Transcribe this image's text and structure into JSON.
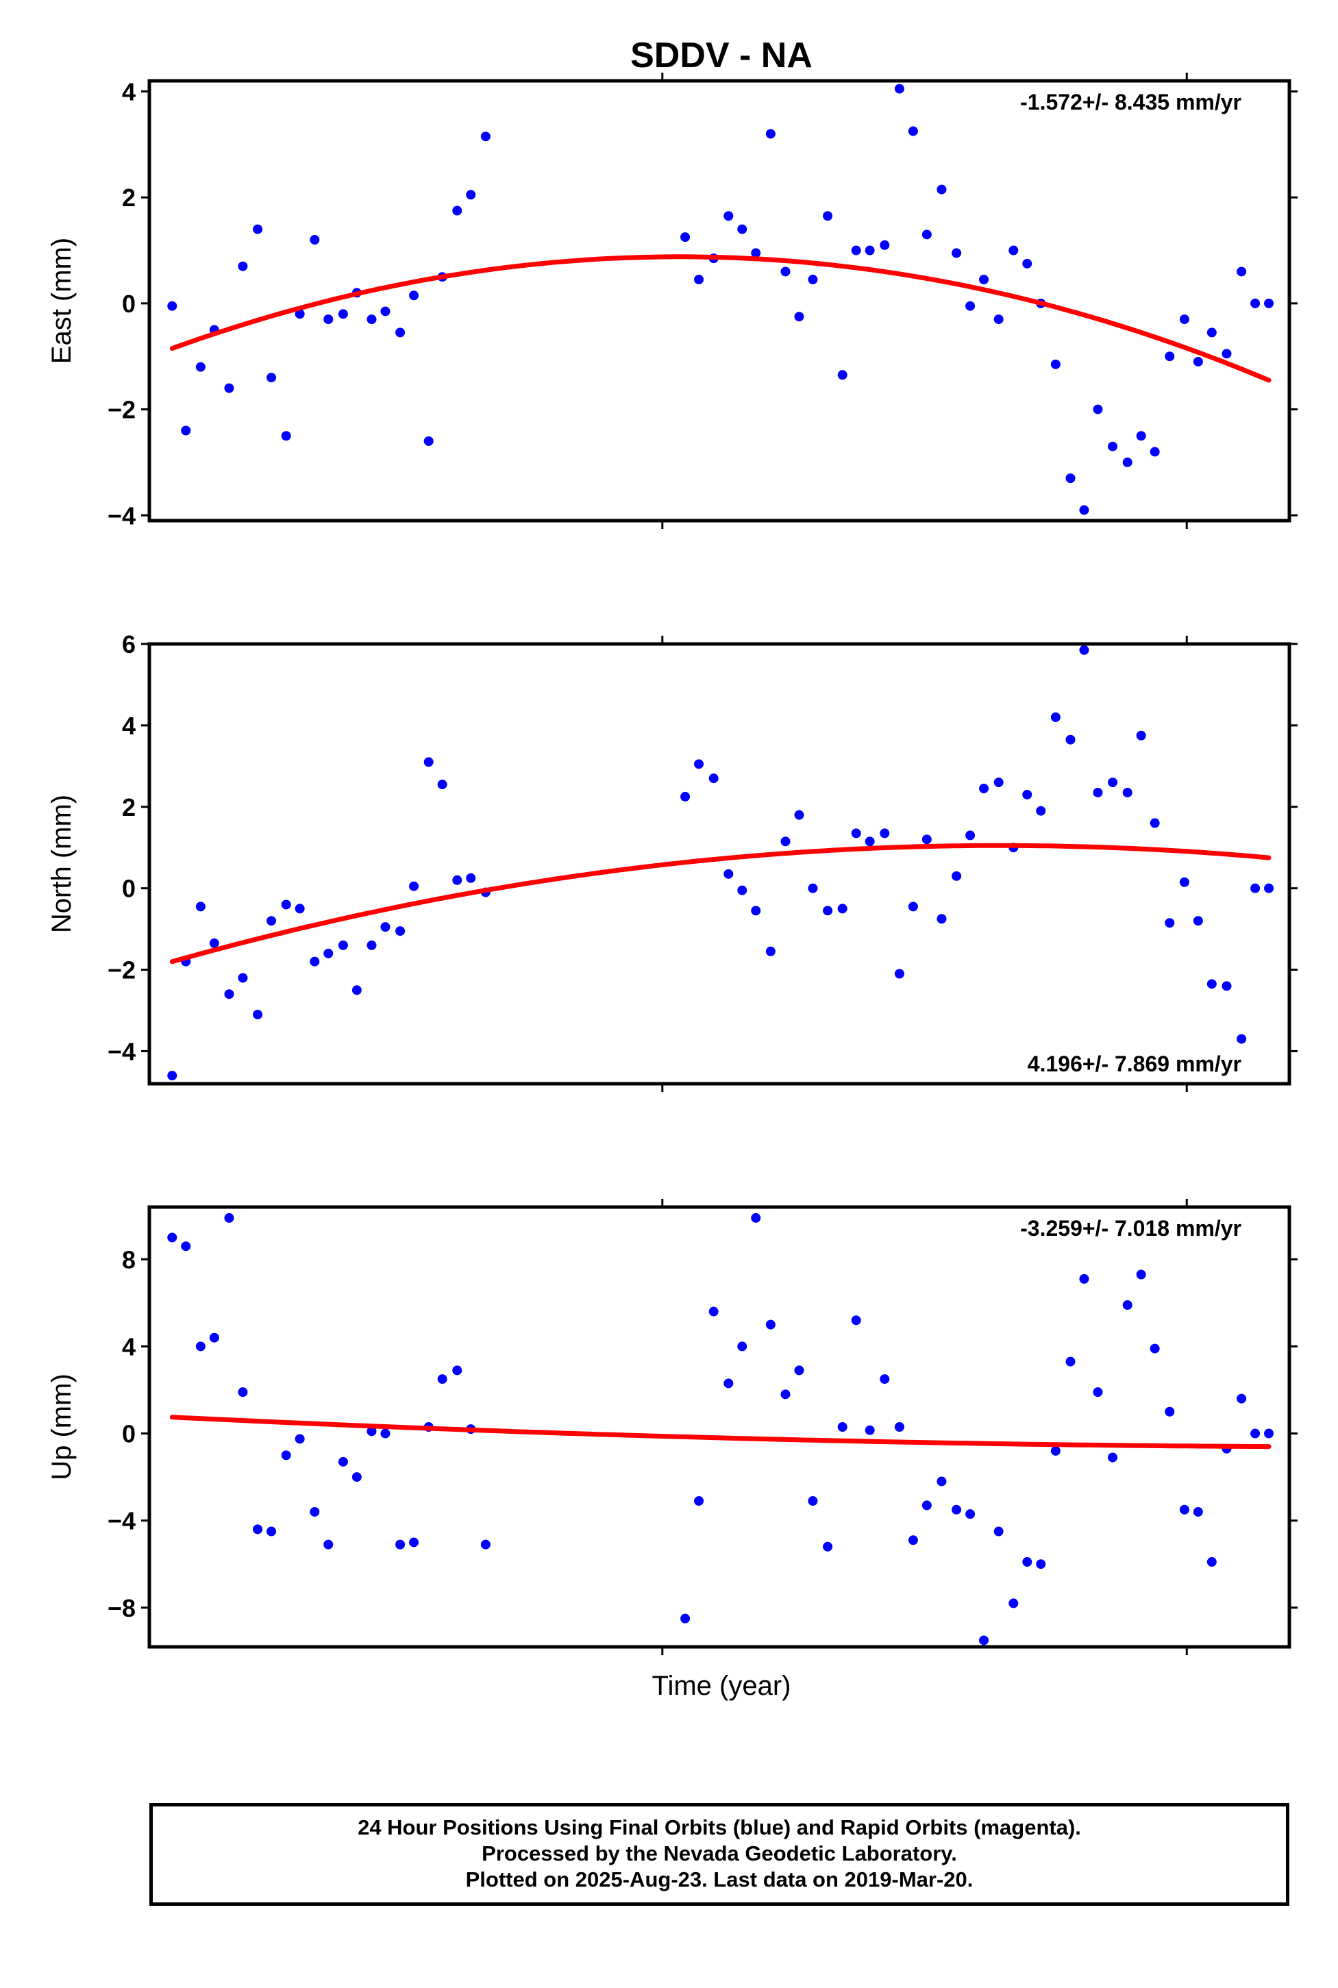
{
  "figure": {
    "title": "SDDV - NA",
    "xlabel": "Time (year)",
    "footer": [
      "24 Hour Positions Using Final Orbits (blue) and Rapid Orbits (magenta).",
      "Processed by the Nevada Geodetic Laboratory.",
      "Plotted on 2025-Aug-23. Last data on 2019-Mar-20."
    ]
  },
  "colors": {
    "points": "#0000ff",
    "fit": "#ff0000",
    "frame": "#000000"
  },
  "chart_data": [
    {
      "type": "scatter",
      "panel": "east",
      "ylabel": "East (mm)",
      "rate_label": "-1.572+/- 8.435 mm/yr",
      "rate_position": "top-right",
      "ylim": [
        -4.1,
        4.2
      ],
      "yticks": [
        -4,
        -2,
        0,
        2,
        4
      ],
      "ytick_labels": [
        "−4",
        "−2",
        "0",
        "2",
        "4"
      ],
      "xlim": [
        0,
        1
      ],
      "xticks": [
        0.45,
        0.91
      ],
      "grid": false,
      "x": [
        0.02,
        0.032,
        0.045,
        0.057,
        0.07,
        0.082,
        0.095,
        0.107,
        0.12,
        0.132,
        0.145,
        0.157,
        0.17,
        0.182,
        0.195,
        0.207,
        0.22,
        0.232,
        0.245,
        0.257,
        0.27,
        0.282,
        0.295,
        0.47,
        0.482,
        0.495,
        0.508,
        0.52,
        0.532,
        0.545,
        0.558,
        0.57,
        0.582,
        0.595,
        0.608,
        0.62,
        0.632,
        0.645,
        0.658,
        0.67,
        0.682,
        0.695,
        0.708,
        0.72,
        0.732,
        0.745,
        0.758,
        0.77,
        0.782,
        0.795,
        0.808,
        0.82,
        0.832,
        0.845,
        0.858,
        0.87,
        0.882,
        0.895,
        0.908,
        0.92,
        0.932,
        0.945,
        0.958,
        0.97,
        0.982
      ],
      "y": [
        -0.05,
        -2.4,
        -1.2,
        -0.5,
        -1.6,
        0.7,
        1.4,
        -1.4,
        -2.5,
        -0.2,
        1.2,
        -0.3,
        -0.2,
        0.2,
        -0.3,
        -0.15,
        -0.55,
        0.15,
        -2.6,
        0.5,
        1.75,
        2.05,
        3.15,
        1.25,
        0.45,
        0.85,
        1.65,
        1.4,
        0.95,
        3.2,
        0.6,
        -0.25,
        0.45,
        1.65,
        -1.35,
        1.0,
        1.0,
        1.1,
        4.05,
        3.25,
        1.3,
        2.15,
        0.95,
        -0.05,
        0.45,
        -0.3,
        1.0,
        0.75,
        0.0,
        -1.15,
        -3.3,
        -3.9,
        -2.0,
        -2.7,
        -3.0,
        -2.5,
        -2.8,
        -1.0,
        -0.3,
        -1.1,
        -0.55,
        -0.95,
        0.6,
        0.0,
        0.0
      ],
      "fit": {
        "x": [
          0.02,
          0.46,
          0.982
        ],
        "y": [
          -0.85,
          0.88,
          -1.45
        ]
      }
    },
    {
      "type": "scatter",
      "panel": "north",
      "ylabel": "North (mm)",
      "rate_label": "4.196+/- 7.869 mm/yr",
      "rate_position": "bottom-right",
      "ylim": [
        -4.8,
        6.0
      ],
      "yticks": [
        -4,
        -2,
        0,
        2,
        4,
        6
      ],
      "ytick_labels": [
        "−4",
        "−2",
        "0",
        "2",
        "4",
        "6"
      ],
      "xlim": [
        0,
        1
      ],
      "xticks": [
        0.45,
        0.91
      ],
      "grid": false,
      "x": [
        0.02,
        0.032,
        0.045,
        0.057,
        0.07,
        0.082,
        0.095,
        0.107,
        0.12,
        0.132,
        0.145,
        0.157,
        0.17,
        0.182,
        0.195,
        0.207,
        0.22,
        0.232,
        0.245,
        0.257,
        0.27,
        0.282,
        0.295,
        0.47,
        0.482,
        0.495,
        0.508,
        0.52,
        0.532,
        0.545,
        0.558,
        0.57,
        0.582,
        0.595,
        0.608,
        0.62,
        0.632,
        0.645,
        0.658,
        0.67,
        0.682,
        0.695,
        0.708,
        0.72,
        0.732,
        0.745,
        0.758,
        0.77,
        0.782,
        0.795,
        0.808,
        0.82,
        0.832,
        0.845,
        0.858,
        0.87,
        0.882,
        0.895,
        0.908,
        0.92,
        0.932,
        0.945,
        0.958,
        0.97,
        0.982
      ],
      "y": [
        -4.6,
        -1.8,
        -0.45,
        -1.35,
        -2.6,
        -2.2,
        -3.1,
        -0.8,
        -0.4,
        -0.5,
        -1.8,
        -1.6,
        -1.4,
        -2.5,
        -1.4,
        -0.95,
        -1.05,
        0.05,
        3.1,
        2.55,
        0.2,
        0.25,
        -0.1,
        2.25,
        3.05,
        2.7,
        0.35,
        -0.05,
        -0.55,
        -1.55,
        1.15,
        1.8,
        0.0,
        -0.55,
        -0.5,
        1.35,
        1.15,
        1.35,
        -2.1,
        -0.45,
        1.2,
        -0.75,
        0.3,
        1.3,
        2.45,
        2.6,
        1.0,
        2.3,
        1.9,
        4.2,
        3.65,
        5.85,
        2.35,
        2.6,
        2.35,
        3.75,
        1.6,
        -0.85,
        0.15,
        -0.8,
        -2.35,
        -2.4,
        -3.7,
        0.0,
        0.0
      ],
      "fit": {
        "x": [
          0.02,
          0.75,
          0.982
        ],
        "y": [
          -1.8,
          1.05,
          0.75
        ]
      }
    },
    {
      "type": "scatter",
      "panel": "up",
      "ylabel": "Up (mm)",
      "rate_label": "-3.259+/- 7.018 mm/yr",
      "rate_position": "top-right",
      "ylim": [
        -9.8,
        10.4
      ],
      "yticks": [
        -8,
        -4,
        0,
        4,
        8
      ],
      "ytick_labels": [
        "−8",
        "−4",
        "0",
        "4",
        "8"
      ],
      "xlim": [
        0,
        1
      ],
      "xticks": [
        0.45,
        0.91
      ],
      "grid": false,
      "x": [
        0.02,
        0.032,
        0.045,
        0.057,
        0.07,
        0.082,
        0.095,
        0.107,
        0.12,
        0.132,
        0.145,
        0.157,
        0.17,
        0.182,
        0.195,
        0.207,
        0.22,
        0.232,
        0.245,
        0.257,
        0.27,
        0.282,
        0.295,
        0.47,
        0.482,
        0.495,
        0.508,
        0.52,
        0.532,
        0.545,
        0.558,
        0.57,
        0.582,
        0.595,
        0.608,
        0.62,
        0.632,
        0.645,
        0.658,
        0.67,
        0.682,
        0.695,
        0.708,
        0.72,
        0.732,
        0.745,
        0.758,
        0.77,
        0.782,
        0.795,
        0.808,
        0.82,
        0.832,
        0.845,
        0.858,
        0.87,
        0.882,
        0.895,
        0.908,
        0.92,
        0.932,
        0.945,
        0.958,
        0.97,
        0.982
      ],
      "y": [
        9.0,
        8.6,
        4.0,
        4.4,
        9.9,
        1.9,
        -4.4,
        -4.5,
        -1.0,
        -0.25,
        -3.6,
        -5.1,
        -1.3,
        -2.0,
        0.1,
        0.0,
        -5.1,
        -5.0,
        0.3,
        2.5,
        2.9,
        0.2,
        -5.1,
        -8.5,
        -3.1,
        5.6,
        2.3,
        4.0,
        9.9,
        5.0,
        1.8,
        2.9,
        -3.1,
        -5.2,
        0.3,
        5.2,
        0.15,
        2.5,
        0.3,
        -4.9,
        -3.3,
        -2.2,
        -3.5,
        -3.7,
        -9.5,
        -4.5,
        -7.8,
        -5.9,
        -6.0,
        -0.8,
        3.3,
        7.1,
        1.9,
        -1.1,
        5.9,
        7.3,
        3.9,
        1.0,
        -3.5,
        -3.6,
        -5.9,
        -0.7,
        1.6,
        0.0,
        0.0
      ],
      "fit": {
        "x": [
          0.02,
          0.5,
          0.982
        ],
        "y": [
          0.75,
          -0.2,
          -0.6
        ]
      }
    }
  ]
}
